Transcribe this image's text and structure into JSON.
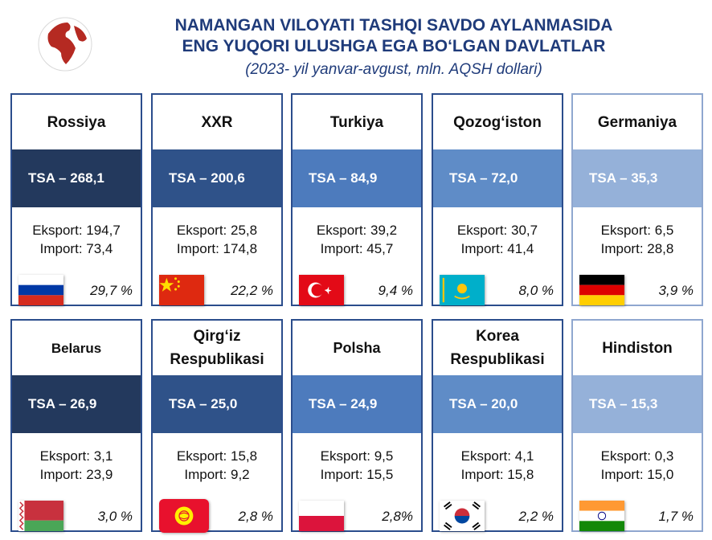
{
  "header": {
    "title_line1": "NAMANGAN VILOYATI TASHQI SAVDO AYLANMASIDA",
    "title_line2": "ENG YUQORI ULUSHGA EGA BO‘LGAN DAVLATLAR",
    "subtitle": "(2023- yil yanvar-avgust, mln. AQSH dollari)"
  },
  "logo_icon": "globe-icon",
  "countries": [
    {
      "name": "Rossiya",
      "tsa": "TSA – 268,1",
      "export": "Eksport: 194,7",
      "import": "Import: 73,4",
      "share": "29,7 %",
      "flag": "russia-flag-icon"
    },
    {
      "name": "XXR",
      "tsa": "TSA – 200,6",
      "export": "Eksport: 25,8",
      "import": "Import: 174,8",
      "share": "22,2 %",
      "flag": "china-flag-icon"
    },
    {
      "name": "Turkiya",
      "tsa": "TSA – 84,9",
      "export": "Eksport: 39,2",
      "import": "Import: 45,7",
      "share": "9,4 %",
      "flag": "turkey-flag-icon"
    },
    {
      "name": "Qozog‘iston",
      "tsa": "TSA – 72,0",
      "export": "Eksport: 30,7",
      "import": "Import: 41,4",
      "share": "8,0 %",
      "flag": "kazakhstan-flag-icon"
    },
    {
      "name": "Germaniya",
      "tsa": "TSA – 35,3",
      "export": "Eksport: 6,5",
      "import": "Import: 28,8",
      "share": "3,9 %",
      "flag": "germany-flag-icon"
    },
    {
      "name": "Belarus",
      "tsa": "TSA – 26,9",
      "export": "Eksport: 3,1",
      "import": "Import: 23,9",
      "share": "3,0 %",
      "flag": "belarus-flag-icon"
    },
    {
      "name": "Qirg‘iz Respublikasi",
      "tsa": "TSA – 25,0",
      "export": "Eksport: 15,8",
      "import": "Import: 9,2",
      "share": "2,8 %",
      "flag": "kyrgyzstan-flag-icon"
    },
    {
      "name": "Polsha",
      "tsa": "TSA – 24,9",
      "export": "Eksport: 9,5",
      "import": "Import: 15,5",
      "share": "2,8%",
      "flag": "poland-flag-icon"
    },
    {
      "name": "Korea Respublikasi",
      "tsa": "TSA – 20,0",
      "export": "Eksport: 4,1",
      "import": "Import: 15,8",
      "share": "2,2 %",
      "flag": "south-korea-flag-icon"
    },
    {
      "name": "Hindiston",
      "tsa": "TSA – 15,3",
      "export": "Eksport: 0,3",
      "import": "Import: 15,0",
      "share": "1,7 %",
      "flag": "india-flag-icon"
    }
  ]
}
